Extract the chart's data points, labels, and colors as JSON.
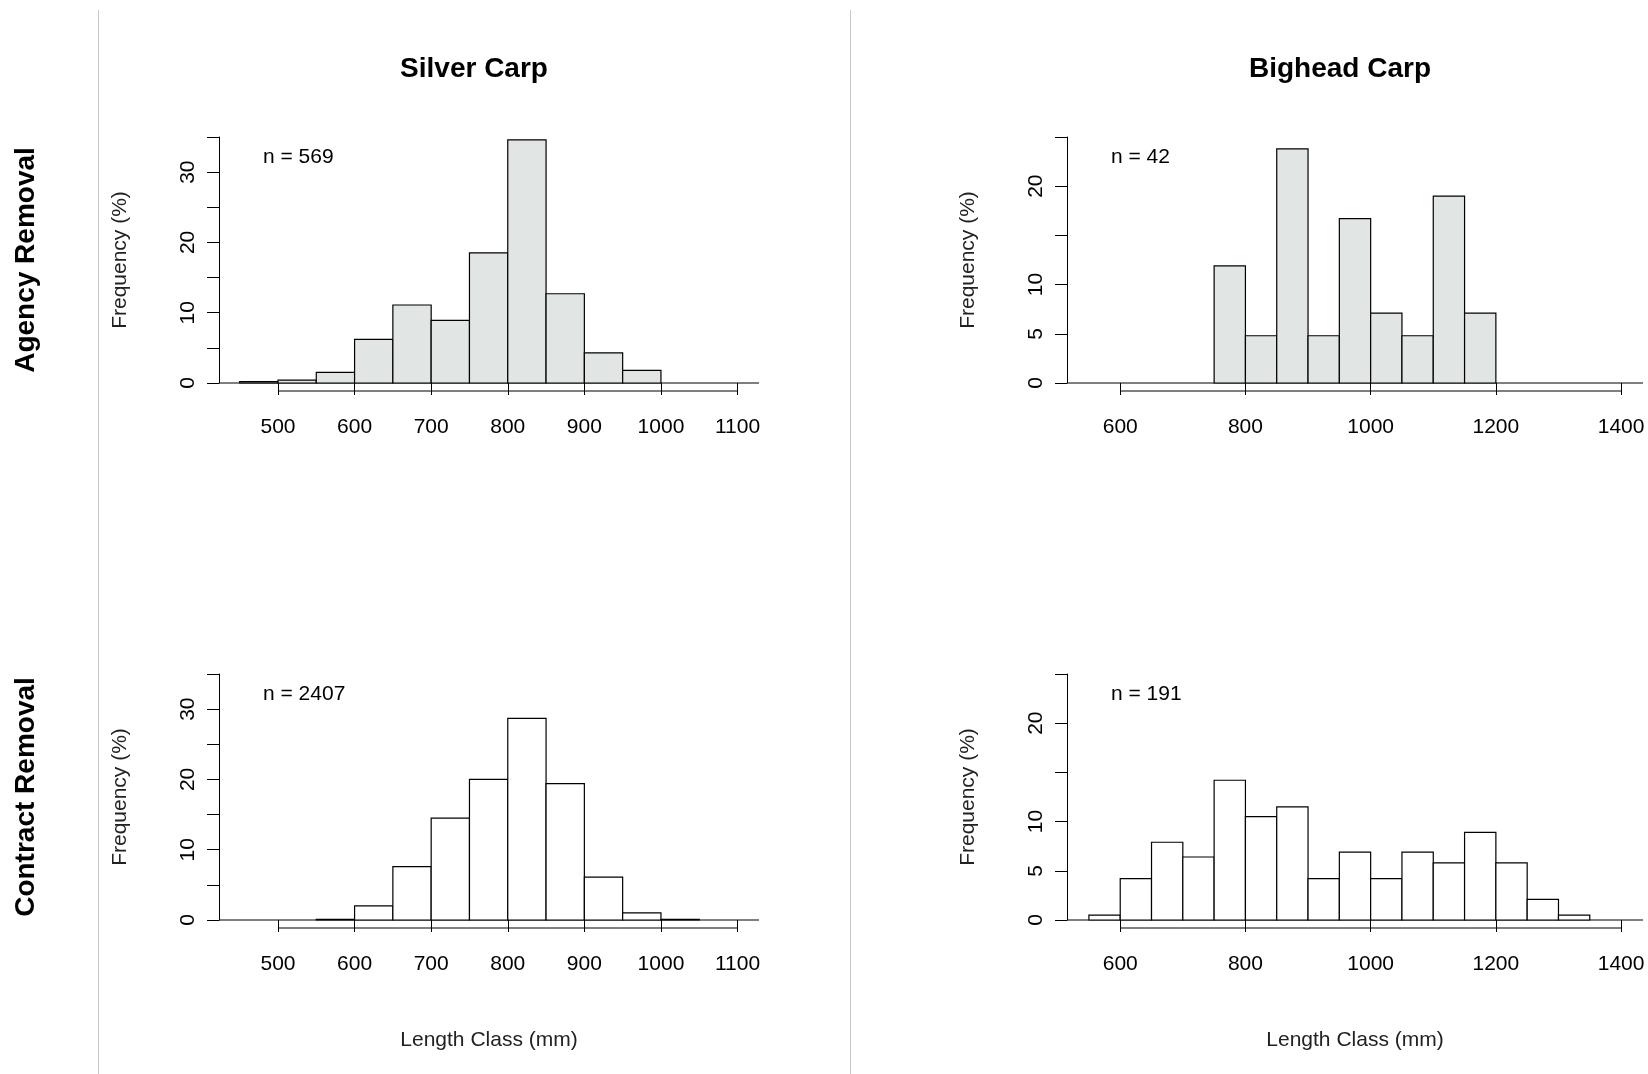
{
  "chart_data": [
    {
      "type": "histogram",
      "title": "Silver Carp",
      "ylabel": "Frequency (%)",
      "annotations": [
        "n = 569",
        "Agency Removal"
      ],
      "color": "#e1e6e5",
      "bins": [
        450,
        500,
        550,
        600,
        650,
        700,
        750,
        800,
        850,
        900,
        950,
        1000
      ],
      "values": [
        0.2,
        0.4,
        1.5,
        6.2,
        11.1,
        8.9,
        18.5,
        34.6,
        12.7,
        4.3,
        1.8
      ],
      "xlim": [
        423,
        1128
      ],
      "xticks": [
        500,
        600,
        700,
        800,
        900,
        1000,
        1100
      ],
      "ylim": [
        0,
        35
      ],
      "yticks": [
        0,
        {
          "value": 5,
          "label": null
        },
        10,
        {
          "value": 15,
          "label": null
        },
        20,
        {
          "value": 25,
          "label": null
        },
        30,
        {
          "value": 35,
          "label": null
        }
      ],
      "ref_lines": [
        {
          "axis": "y",
          "value": 0
        }
      ]
    },
    {
      "type": "histogram",
      "title": "Bighead Carp",
      "ylabel": "Frequency (%)",
      "annotations": [
        "n = 42"
      ],
      "color": "#e1e6e5",
      "bins": [
        750,
        800,
        850,
        900,
        950,
        1000,
        1050,
        1100,
        1150,
        1200
      ],
      "values": [
        11.9,
        4.8,
        23.8,
        4.8,
        16.7,
        7.1,
        4.8,
        19.0,
        7.1
      ],
      "xlim": [
        515,
        1435
      ],
      "xticks": [
        600,
        800,
        1000,
        1200,
        1400
      ],
      "ylim": [
        0,
        25
      ],
      "yticks": [
        0,
        5,
        10,
        {
          "value": 15,
          "label": null
        },
        20,
        {
          "value": 25,
          "label": null
        }
      ],
      "ref_lines": [
        {
          "axis": "y",
          "value": 0
        }
      ]
    },
    {
      "type": "histogram",
      "xlabel": "Length Class (mm)",
      "ylabel": "Frequency (%)",
      "annotations": [
        "n = 2407",
        "Contract Removal"
      ],
      "color": "#ffffff",
      "bins": [
        550,
        600,
        650,
        700,
        750,
        800,
        850,
        900,
        950,
        1000,
        1050
      ],
      "values": [
        0.1,
        2.0,
        7.6,
        14.5,
        20.0,
        28.7,
        19.4,
        6.1,
        1.0,
        0.1
      ],
      "xlim": [
        423,
        1128
      ],
      "xticks": [
        500,
        600,
        700,
        800,
        900,
        1000,
        1100
      ],
      "ylim": [
        0,
        35
      ],
      "yticks": [
        0,
        {
          "value": 5,
          "label": null
        },
        10,
        {
          "value": 15,
          "label": null
        },
        20,
        {
          "value": 25,
          "label": null
        },
        30,
        {
          "value": 35,
          "label": null
        }
      ],
      "ref_lines": [
        {
          "axis": "y",
          "value": 0
        }
      ]
    },
    {
      "type": "histogram",
      "xlabel": "Length Class (mm)",
      "ylabel": "Frequency (%)",
      "annotations": [
        "n = 191"
      ],
      "color": "#ffffff",
      "bins": [
        550,
        600,
        650,
        700,
        750,
        800,
        850,
        900,
        950,
        1000,
        1050,
        1100,
        1150,
        1200,
        1250,
        1300,
        1350
      ],
      "values": [
        0.5,
        4.2,
        7.9,
        6.4,
        14.2,
        10.5,
        11.5,
        4.2,
        6.9,
        4.2,
        6.9,
        5.8,
        8.9,
        5.8,
        2.1,
        0.5
      ],
      "xlim": [
        515,
        1435
      ],
      "xticks": [
        600,
        800,
        1000,
        1200,
        1400
      ],
      "ylim": [
        0,
        25
      ],
      "yticks": [
        0,
        5,
        10,
        {
          "value": 15,
          "label": null
        },
        20,
        {
          "value": 25,
          "label": null
        }
      ],
      "ref_lines": [
        {
          "axis": "y",
          "value": 0
        }
      ]
    }
  ]
}
